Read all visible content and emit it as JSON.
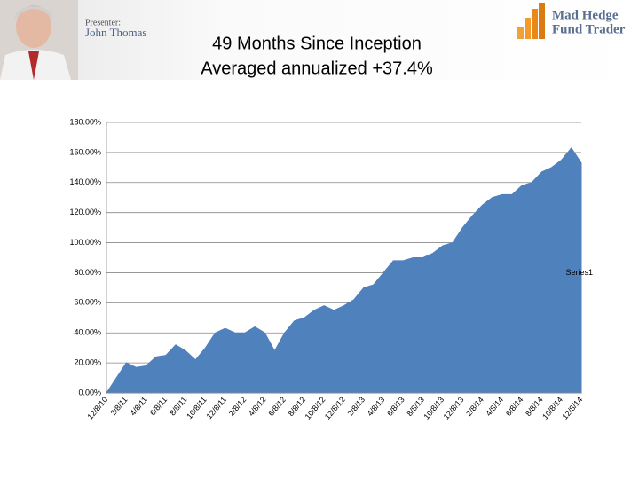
{
  "header": {
    "presenter_label": "Presenter:",
    "presenter_name": "John Thomas",
    "logo_line1": "Mad Hedge",
    "logo_line2": "Fund Trader"
  },
  "chart_data": {
    "type": "area",
    "title": "49 Months Since Inception",
    "subtitle": "Averaged annualized +37.4%",
    "categories": [
      "12/8/10",
      null,
      "2/8/11",
      null,
      "4/8/11",
      null,
      "6/8/11",
      null,
      "8/8/11",
      null,
      "10/8/11",
      null,
      "12/8/11",
      null,
      "2/8/12",
      null,
      "4/8/12",
      null,
      "6/8/12",
      null,
      "8/8/12",
      null,
      "10/8/12",
      null,
      "12/8/12",
      null,
      "2/8/13",
      null,
      "4/8/13",
      null,
      "6/8/13",
      null,
      "8/8/13",
      null,
      "10/8/13",
      null,
      "12/8/13",
      null,
      "2/8/14",
      null,
      "4/8/14",
      null,
      "6/8/14",
      null,
      "8/8/14",
      null,
      "10/8/14",
      null,
      "12/8/14"
    ],
    "series": [
      {
        "name": "Series1",
        "color": "#4f81bd",
        "values": [
          0,
          10,
          20,
          17,
          18,
          24,
          25,
          32,
          28,
          22,
          30,
          40,
          43,
          40,
          40,
          44,
          40,
          28,
          40,
          48,
          50,
          55,
          58,
          55,
          58,
          62,
          70,
          72,
          80,
          88,
          88,
          90,
          90,
          93,
          98,
          100,
          110,
          118,
          125,
          130,
          132,
          132,
          138,
          140,
          147,
          150,
          155,
          163,
          153
        ]
      }
    ],
    "ylim": [
      0,
      180
    ],
    "yticks": [
      {
        "value": 0,
        "label": "0.00%"
      },
      {
        "value": 20,
        "label": "20.00%"
      },
      {
        "value": 40,
        "label": "40.00%"
      },
      {
        "value": 60,
        "label": "60.00%"
      },
      {
        "value": 80,
        "label": "80.00%"
      },
      {
        "value": 100,
        "label": "100.00%"
      },
      {
        "value": 120,
        "label": "120.00%"
      },
      {
        "value": 140,
        "label": "140.00%"
      },
      {
        "value": 160,
        "label": "160.00%"
      },
      {
        "value": 180,
        "label": "180.00%"
      }
    ],
    "grid": true,
    "legend": "right"
  }
}
